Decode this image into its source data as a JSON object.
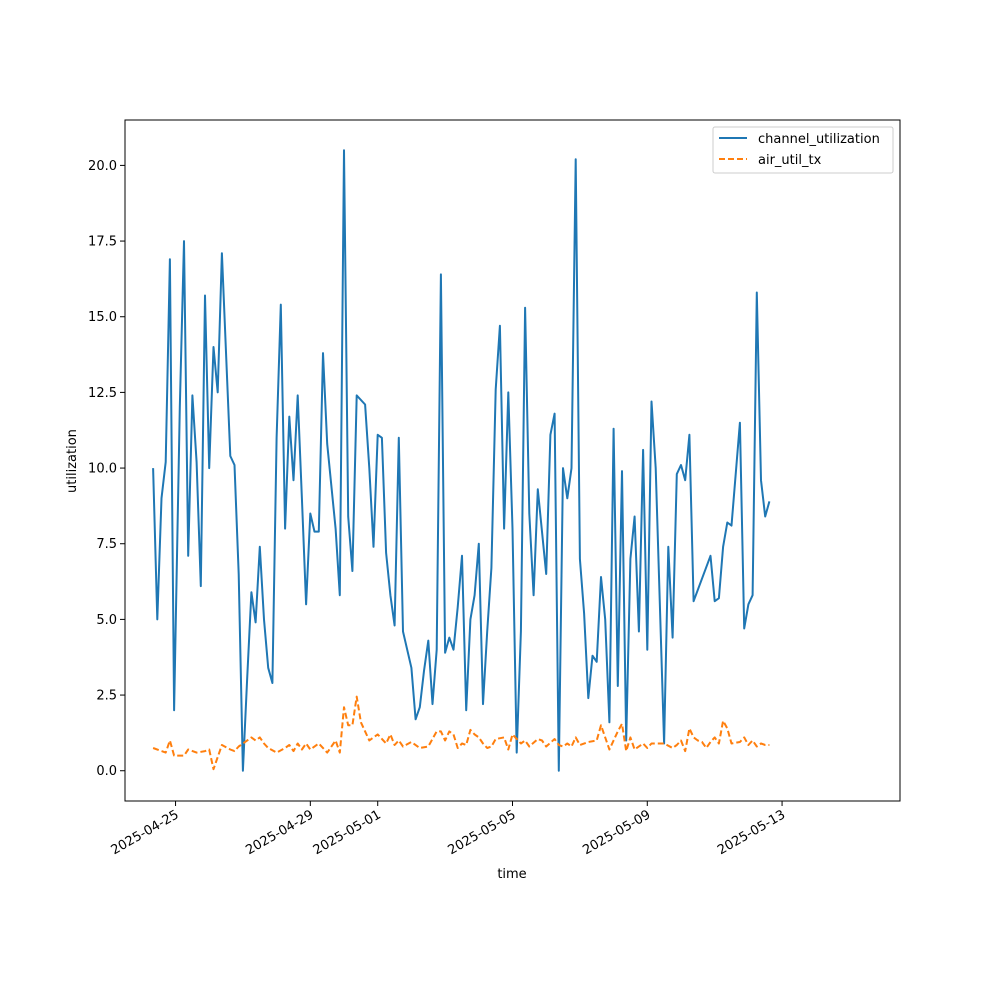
{
  "chart_data": {
    "type": "line",
    "title": "",
    "xlabel": "time",
    "ylabel": "utilization",
    "xlim": [
      "2025-04-23T12:00",
      "2025-05-16T12:00"
    ],
    "ylim": [
      -1.0,
      21.5
    ],
    "x_ticks": [
      "2025-04-25",
      "2025-04-29",
      "2025-05-01",
      "2025-05-05",
      "2025-05-09",
      "2025-05-13"
    ],
    "y_ticks": [
      0.0,
      2.5,
      5.0,
      7.5,
      10.0,
      12.5,
      15.0,
      17.5,
      20.0
    ],
    "y_tick_labels": [
      "0.0",
      "2.5",
      "5.0",
      "7.5",
      "10.0",
      "12.5",
      "15.0",
      "17.5",
      "20.0"
    ],
    "grid": false,
    "legend_position": "top-right",
    "series": [
      {
        "name": "channel_utilization",
        "color": "#1f77b4",
        "style": "solid",
        "points": [
          [
            "2025-04-24T08:00",
            10.0
          ],
          [
            "2025-04-24T11:00",
            5.0
          ],
          [
            "2025-04-24T14:00",
            9.0
          ],
          [
            "2025-04-24T17:00",
            10.2
          ],
          [
            "2025-04-24T20:00",
            16.9
          ],
          [
            "2025-04-24T23:00",
            2.0
          ],
          [
            "2025-04-25T03:00",
            12.0
          ],
          [
            "2025-04-25T06:00",
            17.5
          ],
          [
            "2025-04-25T09:00",
            7.1
          ],
          [
            "2025-04-25T12:00",
            12.4
          ],
          [
            "2025-04-25T15:00",
            10.2
          ],
          [
            "2025-04-25T18:00",
            6.1
          ],
          [
            "2025-04-25T21:00",
            15.7
          ],
          [
            "2025-04-26T00:00",
            10.0
          ],
          [
            "2025-04-26T03:00",
            14.0
          ],
          [
            "2025-04-26T06:00",
            12.5
          ],
          [
            "2025-04-26T09:00",
            17.1
          ],
          [
            "2025-04-26T15:00",
            10.4
          ],
          [
            "2025-04-26T18:00",
            10.1
          ],
          [
            "2025-04-26T21:00",
            6.5
          ],
          [
            "2025-04-27T00:00",
            0.0
          ],
          [
            "2025-04-27T03:00",
            3.0
          ],
          [
            "2025-04-27T06:00",
            5.9
          ],
          [
            "2025-04-27T09:00",
            4.9
          ],
          [
            "2025-04-27T12:00",
            7.4
          ],
          [
            "2025-04-27T15:00",
            5.0
          ],
          [
            "2025-04-27T18:00",
            3.4
          ],
          [
            "2025-04-27T21:00",
            2.9
          ],
          [
            "2025-04-28T00:00",
            11.0
          ],
          [
            "2025-04-28T03:00",
            15.4
          ],
          [
            "2025-04-28T06:00",
            8.0
          ],
          [
            "2025-04-28T09:00",
            11.7
          ],
          [
            "2025-04-28T12:00",
            9.6
          ],
          [
            "2025-04-28T15:00",
            12.4
          ],
          [
            "2025-04-28T18:00",
            9.0
          ],
          [
            "2025-04-28T21:00",
            5.5
          ],
          [
            "2025-04-29T00:00",
            8.5
          ],
          [
            "2025-04-29T03:00",
            7.9
          ],
          [
            "2025-04-29T06:00",
            7.9
          ],
          [
            "2025-04-29T09:00",
            13.8
          ],
          [
            "2025-04-29T12:00",
            10.8
          ],
          [
            "2025-04-29T18:00",
            8.0
          ],
          [
            "2025-04-29T21:00",
            5.8
          ],
          [
            "2025-04-30T00:00",
            20.5
          ],
          [
            "2025-04-30T03:00",
            8.4
          ],
          [
            "2025-04-30T06:00",
            6.6
          ],
          [
            "2025-04-30T09:00",
            12.4
          ],
          [
            "2025-04-30T15:00",
            12.1
          ],
          [
            "2025-04-30T18:00",
            10.0
          ],
          [
            "2025-04-30T21:00",
            7.4
          ],
          [
            "2025-05-01T00:00",
            11.1
          ],
          [
            "2025-05-01T03:00",
            11.0
          ],
          [
            "2025-05-01T06:00",
            7.2
          ],
          [
            "2025-05-01T09:00",
            5.8
          ],
          [
            "2025-05-01T12:00",
            4.8
          ],
          [
            "2025-05-01T15:00",
            11.0
          ],
          [
            "2025-05-01T18:00",
            4.6
          ],
          [
            "2025-05-02T00:00",
            3.4
          ],
          [
            "2025-05-02T03:00",
            1.7
          ],
          [
            "2025-05-02T06:00",
            2.1
          ],
          [
            "2025-05-02T09:00",
            3.3
          ],
          [
            "2025-05-02T12:00",
            4.3
          ],
          [
            "2025-05-02T15:00",
            2.2
          ],
          [
            "2025-05-02T18:00",
            4.0
          ],
          [
            "2025-05-02T21:00",
            16.4
          ],
          [
            "2025-05-03T00:00",
            3.9
          ],
          [
            "2025-05-03T03:00",
            4.4
          ],
          [
            "2025-05-03T06:00",
            4.0
          ],
          [
            "2025-05-03T09:00",
            5.4
          ],
          [
            "2025-05-03T12:00",
            7.1
          ],
          [
            "2025-05-03T15:00",
            2.0
          ],
          [
            "2025-05-03T18:00",
            5.0
          ],
          [
            "2025-05-03T21:00",
            5.8
          ],
          [
            "2025-05-04T00:00",
            7.5
          ],
          [
            "2025-05-04T03:00",
            2.2
          ],
          [
            "2025-05-04T06:00",
            4.6
          ],
          [
            "2025-05-04T09:00",
            6.7
          ],
          [
            "2025-05-04T12:00",
            12.6
          ],
          [
            "2025-05-04T15:00",
            14.7
          ],
          [
            "2025-05-04T18:00",
            8.0
          ],
          [
            "2025-05-04T21:00",
            12.5
          ],
          [
            "2025-05-05T00:00",
            8.0
          ],
          [
            "2025-05-05T03:00",
            0.6
          ],
          [
            "2025-05-05T06:00",
            4.6
          ],
          [
            "2025-05-05T09:00",
            15.3
          ],
          [
            "2025-05-05T12:00",
            8.5
          ],
          [
            "2025-05-05T15:00",
            5.8
          ],
          [
            "2025-05-05T18:00",
            9.3
          ],
          [
            "2025-05-06T00:00",
            6.5
          ],
          [
            "2025-05-06T03:00",
            11.1
          ],
          [
            "2025-05-06T06:00",
            11.8
          ],
          [
            "2025-05-06T09:00",
            0.0
          ],
          [
            "2025-05-06T12:00",
            10.0
          ],
          [
            "2025-05-06T15:00",
            9.0
          ],
          [
            "2025-05-06T18:00",
            10.0
          ],
          [
            "2025-05-06T21:00",
            20.2
          ],
          [
            "2025-05-07T00:00",
            7.0
          ],
          [
            "2025-05-07T03:00",
            5.2
          ],
          [
            "2025-05-07T06:00",
            2.4
          ],
          [
            "2025-05-07T09:00",
            3.8
          ],
          [
            "2025-05-07T12:00",
            3.6
          ],
          [
            "2025-05-07T15:00",
            6.4
          ],
          [
            "2025-05-07T18:00",
            5.0
          ],
          [
            "2025-05-07T21:00",
            1.6
          ],
          [
            "2025-05-08T00:00",
            11.3
          ],
          [
            "2025-05-08T03:00",
            2.8
          ],
          [
            "2025-05-08T06:00",
            9.9
          ],
          [
            "2025-05-08T09:00",
            1.0
          ],
          [
            "2025-05-08T12:00",
            7.0
          ],
          [
            "2025-05-08T15:00",
            8.4
          ],
          [
            "2025-05-08T18:00",
            4.6
          ],
          [
            "2025-05-08T21:00",
            10.6
          ],
          [
            "2025-05-09T00:00",
            4.0
          ],
          [
            "2025-05-09T03:00",
            12.2
          ],
          [
            "2025-05-09T06:00",
            10.0
          ],
          [
            "2025-05-09T12:00",
            0.9
          ],
          [
            "2025-05-09T15:00",
            7.4
          ],
          [
            "2025-05-09T18:00",
            4.4
          ],
          [
            "2025-05-09T21:00",
            9.8
          ],
          [
            "2025-05-10T00:00",
            10.1
          ],
          [
            "2025-05-10T03:00",
            9.6
          ],
          [
            "2025-05-10T06:00",
            11.1
          ],
          [
            "2025-05-10T09:00",
            5.6
          ],
          [
            "2025-05-10T21:00",
            7.1
          ],
          [
            "2025-05-11T00:00",
            5.6
          ],
          [
            "2025-05-11T03:00",
            5.7
          ],
          [
            "2025-05-11T06:00",
            7.4
          ],
          [
            "2025-05-11T09:00",
            8.2
          ],
          [
            "2025-05-11T12:00",
            8.1
          ],
          [
            "2025-05-11T18:00",
            11.5
          ],
          [
            "2025-05-11T21:00",
            4.7
          ],
          [
            "2025-05-12T00:00",
            5.5
          ],
          [
            "2025-05-12T03:00",
            5.8
          ],
          [
            "2025-05-12T06:00",
            15.8
          ],
          [
            "2025-05-12T09:00",
            9.6
          ],
          [
            "2025-05-12T12:00",
            8.4
          ],
          [
            "2025-05-12T15:00",
            8.9
          ]
        ]
      },
      {
        "name": "air_util_tx",
        "color": "#ff7f0e",
        "style": "dashed",
        "points": [
          [
            "2025-04-24T08:00",
            0.75
          ],
          [
            "2025-04-24T14:00",
            0.65
          ],
          [
            "2025-04-24T17:00",
            0.6
          ],
          [
            "2025-04-24T20:00",
            1.0
          ],
          [
            "2025-04-24T23:00",
            0.5
          ],
          [
            "2025-04-25T06:00",
            0.5
          ],
          [
            "2025-04-25T09:00",
            0.7
          ],
          [
            "2025-04-25T15:00",
            0.6
          ],
          [
            "2025-04-25T21:00",
            0.65
          ],
          [
            "2025-04-26T00:00",
            0.7
          ],
          [
            "2025-04-26T03:00",
            0.05
          ],
          [
            "2025-04-26T09:00",
            0.85
          ],
          [
            "2025-04-26T15:00",
            0.7
          ],
          [
            "2025-04-26T18:00",
            0.65
          ],
          [
            "2025-04-26T21:00",
            0.8
          ],
          [
            "2025-04-27T00:00",
            0.9
          ],
          [
            "2025-04-27T06:00",
            1.1
          ],
          [
            "2025-04-27T09:00",
            1.0
          ],
          [
            "2025-04-27T12:00",
            1.1
          ],
          [
            "2025-04-27T15:00",
            0.9
          ],
          [
            "2025-04-27T18:00",
            0.75
          ],
          [
            "2025-04-28T00:00",
            0.6
          ],
          [
            "2025-04-28T06:00",
            0.75
          ],
          [
            "2025-04-28T09:00",
            0.85
          ],
          [
            "2025-04-28T12:00",
            0.65
          ],
          [
            "2025-04-28T15:00",
            0.9
          ],
          [
            "2025-04-28T18:00",
            0.7
          ],
          [
            "2025-04-28T21:00",
            0.9
          ],
          [
            "2025-04-29T00:00",
            0.7
          ],
          [
            "2025-04-29T06:00",
            0.9
          ],
          [
            "2025-04-29T12:00",
            0.6
          ],
          [
            "2025-04-29T18:00",
            1.0
          ],
          [
            "2025-04-29T21:00",
            0.6
          ],
          [
            "2025-04-30T00:00",
            2.1
          ],
          [
            "2025-04-30T03:00",
            1.5
          ],
          [
            "2025-04-30T06:00",
            1.5
          ],
          [
            "2025-04-30T09:00",
            2.45
          ],
          [
            "2025-04-30T12:00",
            1.6
          ],
          [
            "2025-04-30T18:00",
            1.0
          ],
          [
            "2025-04-30T21:00",
            1.1
          ],
          [
            "2025-05-01T00:00",
            1.2
          ],
          [
            "2025-05-01T06:00",
            0.9
          ],
          [
            "2025-05-01T09:00",
            1.2
          ],
          [
            "2025-05-01T12:00",
            0.85
          ],
          [
            "2025-05-01T15:00",
            1.0
          ],
          [
            "2025-05-01T18:00",
            0.8
          ],
          [
            "2025-05-02T00:00",
            0.95
          ],
          [
            "2025-05-02T06:00",
            0.75
          ],
          [
            "2025-05-02T12:00",
            0.8
          ],
          [
            "2025-05-02T18:00",
            1.3
          ],
          [
            "2025-05-02T21:00",
            1.3
          ],
          [
            "2025-05-03T00:00",
            1.0
          ],
          [
            "2025-05-03T03:00",
            1.3
          ],
          [
            "2025-05-03T06:00",
            1.2
          ],
          [
            "2025-05-03T09:00",
            0.75
          ],
          [
            "2025-05-03T12:00",
            0.9
          ],
          [
            "2025-05-03T15:00",
            0.85
          ],
          [
            "2025-05-03T18:00",
            1.35
          ],
          [
            "2025-05-03T21:00",
            1.2
          ],
          [
            "2025-05-04T00:00",
            1.1
          ],
          [
            "2025-05-04T03:00",
            0.9
          ],
          [
            "2025-05-04T06:00",
            0.75
          ],
          [
            "2025-05-04T09:00",
            0.8
          ],
          [
            "2025-05-04T12:00",
            1.05
          ],
          [
            "2025-05-04T18:00",
            1.1
          ],
          [
            "2025-05-04T21:00",
            0.7
          ],
          [
            "2025-05-05T00:00",
            1.2
          ],
          [
            "2025-05-05T06:00",
            0.9
          ],
          [
            "2025-05-05T09:00",
            1.0
          ],
          [
            "2025-05-05T12:00",
            0.8
          ],
          [
            "2025-05-05T18:00",
            1.05
          ],
          [
            "2025-05-05T21:00",
            1.0
          ],
          [
            "2025-05-06T00:00",
            0.8
          ],
          [
            "2025-05-06T06:00",
            1.05
          ],
          [
            "2025-05-06T09:00",
            0.85
          ],
          [
            "2025-05-06T12:00",
            0.8
          ],
          [
            "2025-05-06T15:00",
            0.9
          ],
          [
            "2025-05-06T18:00",
            0.8
          ],
          [
            "2025-05-06T21:00",
            1.1
          ],
          [
            "2025-05-07T00:00",
            0.85
          ],
          [
            "2025-05-07T06:00",
            0.95
          ],
          [
            "2025-05-07T12:00",
            1.0
          ],
          [
            "2025-05-07T15:00",
            1.5
          ],
          [
            "2025-05-07T21:00",
            0.7
          ],
          [
            "2025-05-08T03:00",
            1.3
          ],
          [
            "2025-05-08T06:00",
            1.55
          ],
          [
            "2025-05-08T09:00",
            0.65
          ],
          [
            "2025-05-08T12:00",
            1.1
          ],
          [
            "2025-05-08T15:00",
            0.7
          ],
          [
            "2025-05-08T21:00",
            0.9
          ],
          [
            "2025-05-09T00:00",
            0.75
          ],
          [
            "2025-05-09T03:00",
            0.9
          ],
          [
            "2025-05-09T12:00",
            0.9
          ],
          [
            "2025-05-09T18:00",
            0.75
          ],
          [
            "2025-05-09T21:00",
            0.85
          ],
          [
            "2025-05-10T00:00",
            1.0
          ],
          [
            "2025-05-10T03:00",
            0.65
          ],
          [
            "2025-05-10T06:00",
            1.4
          ],
          [
            "2025-05-10T09:00",
            1.1
          ],
          [
            "2025-05-10T12:00",
            1.0
          ],
          [
            "2025-05-10T15:00",
            0.95
          ],
          [
            "2025-05-10T18:00",
            0.75
          ],
          [
            "2025-05-10T21:00",
            0.95
          ],
          [
            "2025-05-11T00:00",
            1.1
          ],
          [
            "2025-05-11T03:00",
            0.9
          ],
          [
            "2025-05-11T06:00",
            1.65
          ],
          [
            "2025-05-11T09:00",
            1.4
          ],
          [
            "2025-05-11T12:00",
            0.9
          ],
          [
            "2025-05-11T18:00",
            0.95
          ],
          [
            "2025-05-11T21:00",
            1.1
          ],
          [
            "2025-05-12T00:00",
            0.85
          ],
          [
            "2025-05-12T03:00",
            1.0
          ],
          [
            "2025-05-12T06:00",
            0.8
          ],
          [
            "2025-05-12T09:00",
            0.9
          ],
          [
            "2025-05-12T12:00",
            0.85
          ],
          [
            "2025-05-12T15:00",
            0.85
          ]
        ]
      }
    ]
  }
}
